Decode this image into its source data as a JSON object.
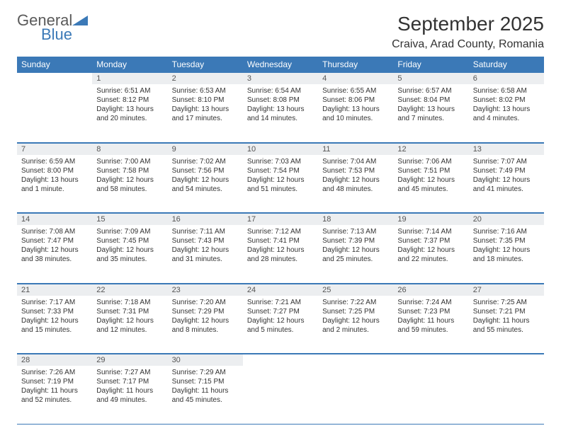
{
  "brand": {
    "line1": "General",
    "line2": "Blue"
  },
  "title": "September 2025",
  "location": "Craiva, Arad County, Romania",
  "colors": {
    "accent": "#3b79b7",
    "daynum_bg": "#eceef0",
    "text": "#333333",
    "bg": "#ffffff"
  },
  "font": {
    "family": "Arial",
    "title_size_pt": 21,
    "location_size_pt": 12,
    "header_size_pt": 9,
    "body_size_pt": 7.5
  },
  "day_headers": [
    "Sunday",
    "Monday",
    "Tuesday",
    "Wednesday",
    "Thursday",
    "Friday",
    "Saturday"
  ],
  "weeks": [
    [
      {
        "n": "",
        "sr": "",
        "ss": "",
        "dl": ""
      },
      {
        "n": "1",
        "sr": "Sunrise: 6:51 AM",
        "ss": "Sunset: 8:12 PM",
        "dl": "Daylight: 13 hours and 20 minutes."
      },
      {
        "n": "2",
        "sr": "Sunrise: 6:53 AM",
        "ss": "Sunset: 8:10 PM",
        "dl": "Daylight: 13 hours and 17 minutes."
      },
      {
        "n": "3",
        "sr": "Sunrise: 6:54 AM",
        "ss": "Sunset: 8:08 PM",
        "dl": "Daylight: 13 hours and 14 minutes."
      },
      {
        "n": "4",
        "sr": "Sunrise: 6:55 AM",
        "ss": "Sunset: 8:06 PM",
        "dl": "Daylight: 13 hours and 10 minutes."
      },
      {
        "n": "5",
        "sr": "Sunrise: 6:57 AM",
        "ss": "Sunset: 8:04 PM",
        "dl": "Daylight: 13 hours and 7 minutes."
      },
      {
        "n": "6",
        "sr": "Sunrise: 6:58 AM",
        "ss": "Sunset: 8:02 PM",
        "dl": "Daylight: 13 hours and 4 minutes."
      }
    ],
    [
      {
        "n": "7",
        "sr": "Sunrise: 6:59 AM",
        "ss": "Sunset: 8:00 PM",
        "dl": "Daylight: 13 hours and 1 minute."
      },
      {
        "n": "8",
        "sr": "Sunrise: 7:00 AM",
        "ss": "Sunset: 7:58 PM",
        "dl": "Daylight: 12 hours and 58 minutes."
      },
      {
        "n": "9",
        "sr": "Sunrise: 7:02 AM",
        "ss": "Sunset: 7:56 PM",
        "dl": "Daylight: 12 hours and 54 minutes."
      },
      {
        "n": "10",
        "sr": "Sunrise: 7:03 AM",
        "ss": "Sunset: 7:54 PM",
        "dl": "Daylight: 12 hours and 51 minutes."
      },
      {
        "n": "11",
        "sr": "Sunrise: 7:04 AM",
        "ss": "Sunset: 7:53 PM",
        "dl": "Daylight: 12 hours and 48 minutes."
      },
      {
        "n": "12",
        "sr": "Sunrise: 7:06 AM",
        "ss": "Sunset: 7:51 PM",
        "dl": "Daylight: 12 hours and 45 minutes."
      },
      {
        "n": "13",
        "sr": "Sunrise: 7:07 AM",
        "ss": "Sunset: 7:49 PM",
        "dl": "Daylight: 12 hours and 41 minutes."
      }
    ],
    [
      {
        "n": "14",
        "sr": "Sunrise: 7:08 AM",
        "ss": "Sunset: 7:47 PM",
        "dl": "Daylight: 12 hours and 38 minutes."
      },
      {
        "n": "15",
        "sr": "Sunrise: 7:09 AM",
        "ss": "Sunset: 7:45 PM",
        "dl": "Daylight: 12 hours and 35 minutes."
      },
      {
        "n": "16",
        "sr": "Sunrise: 7:11 AM",
        "ss": "Sunset: 7:43 PM",
        "dl": "Daylight: 12 hours and 31 minutes."
      },
      {
        "n": "17",
        "sr": "Sunrise: 7:12 AM",
        "ss": "Sunset: 7:41 PM",
        "dl": "Daylight: 12 hours and 28 minutes."
      },
      {
        "n": "18",
        "sr": "Sunrise: 7:13 AM",
        "ss": "Sunset: 7:39 PM",
        "dl": "Daylight: 12 hours and 25 minutes."
      },
      {
        "n": "19",
        "sr": "Sunrise: 7:14 AM",
        "ss": "Sunset: 7:37 PM",
        "dl": "Daylight: 12 hours and 22 minutes."
      },
      {
        "n": "20",
        "sr": "Sunrise: 7:16 AM",
        "ss": "Sunset: 7:35 PM",
        "dl": "Daylight: 12 hours and 18 minutes."
      }
    ],
    [
      {
        "n": "21",
        "sr": "Sunrise: 7:17 AM",
        "ss": "Sunset: 7:33 PM",
        "dl": "Daylight: 12 hours and 15 minutes."
      },
      {
        "n": "22",
        "sr": "Sunrise: 7:18 AM",
        "ss": "Sunset: 7:31 PM",
        "dl": "Daylight: 12 hours and 12 minutes."
      },
      {
        "n": "23",
        "sr": "Sunrise: 7:20 AM",
        "ss": "Sunset: 7:29 PM",
        "dl": "Daylight: 12 hours and 8 minutes."
      },
      {
        "n": "24",
        "sr": "Sunrise: 7:21 AM",
        "ss": "Sunset: 7:27 PM",
        "dl": "Daylight: 12 hours and 5 minutes."
      },
      {
        "n": "25",
        "sr": "Sunrise: 7:22 AM",
        "ss": "Sunset: 7:25 PM",
        "dl": "Daylight: 12 hours and 2 minutes."
      },
      {
        "n": "26",
        "sr": "Sunrise: 7:24 AM",
        "ss": "Sunset: 7:23 PM",
        "dl": "Daylight: 11 hours and 59 minutes."
      },
      {
        "n": "27",
        "sr": "Sunrise: 7:25 AM",
        "ss": "Sunset: 7:21 PM",
        "dl": "Daylight: 11 hours and 55 minutes."
      }
    ],
    [
      {
        "n": "28",
        "sr": "Sunrise: 7:26 AM",
        "ss": "Sunset: 7:19 PM",
        "dl": "Daylight: 11 hours and 52 minutes."
      },
      {
        "n": "29",
        "sr": "Sunrise: 7:27 AM",
        "ss": "Sunset: 7:17 PM",
        "dl": "Daylight: 11 hours and 49 minutes."
      },
      {
        "n": "30",
        "sr": "Sunrise: 7:29 AM",
        "ss": "Sunset: 7:15 PM",
        "dl": "Daylight: 11 hours and 45 minutes."
      },
      {
        "n": "",
        "sr": "",
        "ss": "",
        "dl": ""
      },
      {
        "n": "",
        "sr": "",
        "ss": "",
        "dl": ""
      },
      {
        "n": "",
        "sr": "",
        "ss": "",
        "dl": ""
      },
      {
        "n": "",
        "sr": "",
        "ss": "",
        "dl": ""
      }
    ]
  ]
}
